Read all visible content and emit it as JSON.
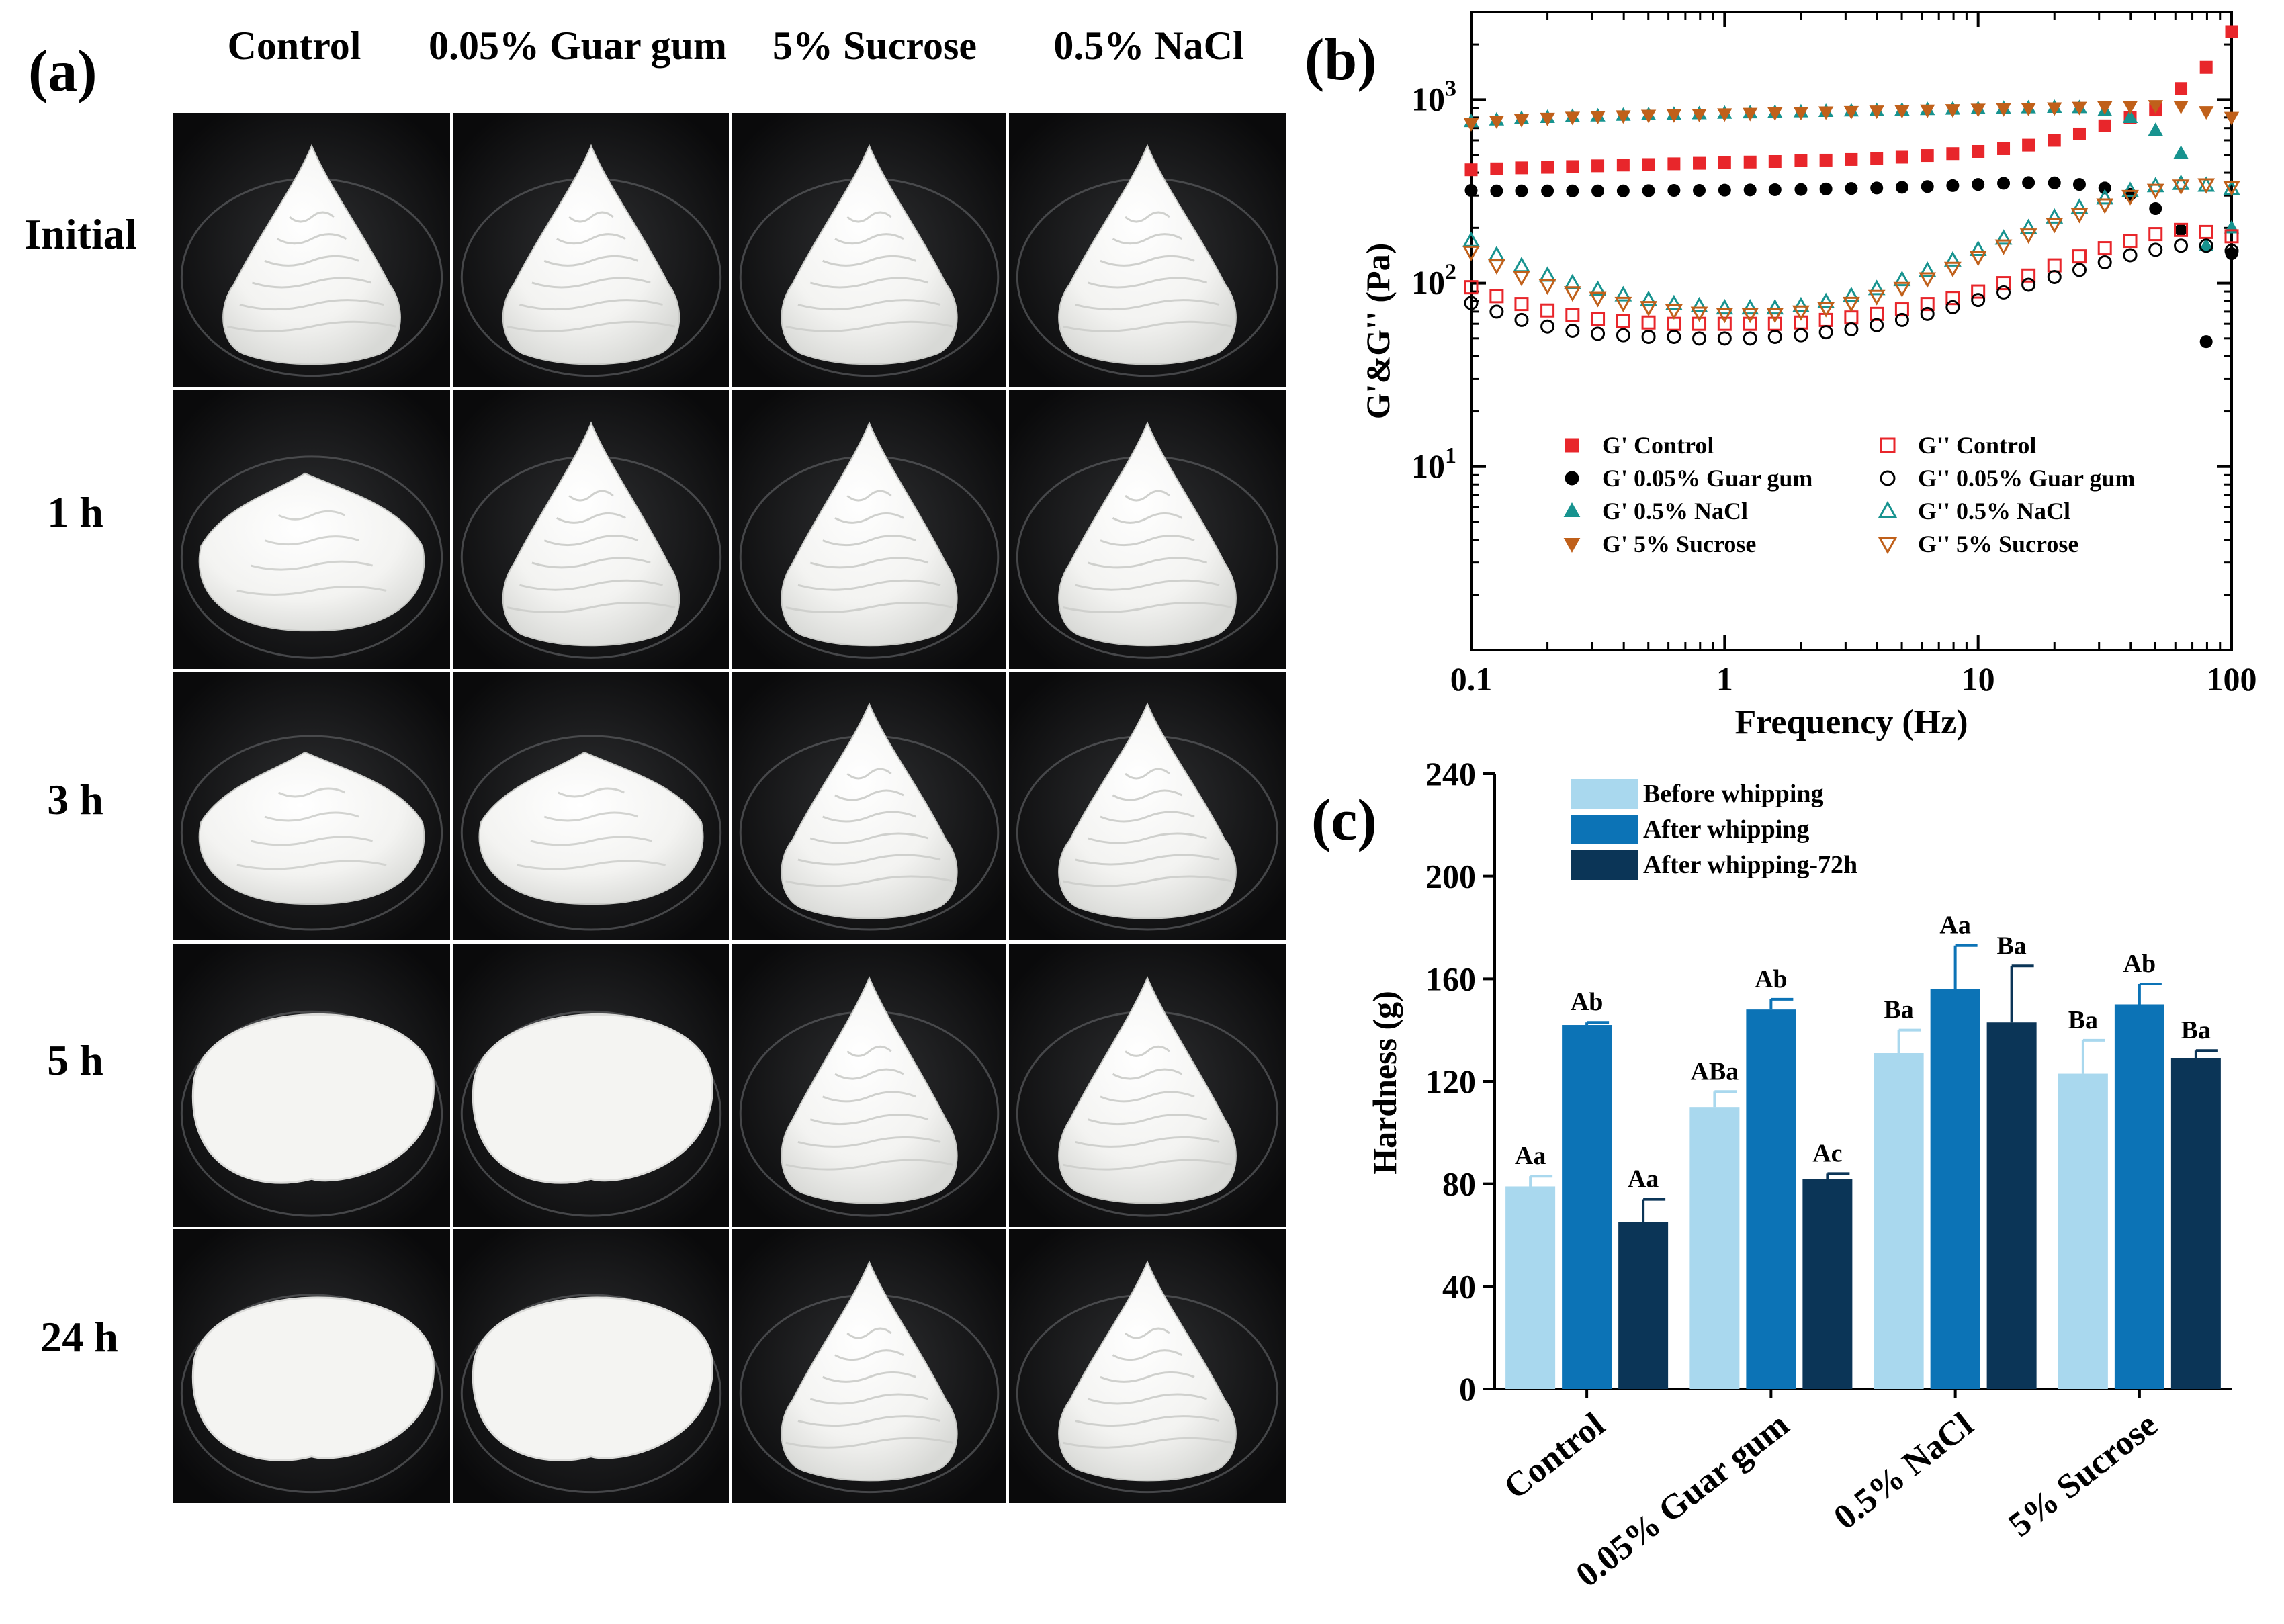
{
  "panel_a": {
    "label": "(a)",
    "columns": [
      "Control",
      "0.05% Guar gum",
      "5% Sucrose",
      "0.5% NaCl"
    ],
    "rows": [
      "Initial",
      "1 h",
      "3 h",
      "5 h",
      "24 h"
    ],
    "states": [
      [
        "peak",
        "peak",
        "peak",
        "peak"
      ],
      [
        "slump",
        "peak",
        "peak",
        "peak"
      ],
      [
        "slump",
        "slump",
        "peak",
        "peak"
      ],
      [
        "puddle",
        "puddle",
        "peak",
        "peak"
      ],
      [
        "puddle",
        "puddle",
        "peak",
        "peak"
      ]
    ]
  },
  "chart_data": [
    {
      "id": "b",
      "panel_label": "(b)",
      "type": "scatter",
      "x_scale": "log",
      "y_scale": "log",
      "xlim": [
        0.1,
        100
      ],
      "ylim": [
        1,
        3000
      ],
      "xlabel": "Frequency (Hz)",
      "ylabel": "G'&G'' (Pa)",
      "x_ticks": [
        {
          "v": 0.1,
          "label": "0.1"
        },
        {
          "v": 1,
          "label": "1"
        },
        {
          "v": 10,
          "label": "10"
        },
        {
          "v": 100,
          "label": "100"
        }
      ],
      "y_ticks": [
        {
          "v": 10,
          "base": "10",
          "exp": "1"
        },
        {
          "v": 100,
          "base": "10",
          "exp": "2"
        },
        {
          "v": 1000,
          "base": "10",
          "exp": "3"
        }
      ],
      "x": [
        0.1,
        0.126,
        0.158,
        0.2,
        0.251,
        0.316,
        0.398,
        0.501,
        0.631,
        0.794,
        1.0,
        1.26,
        1.58,
        2.0,
        2.51,
        3.16,
        3.98,
        5.01,
        6.31,
        7.94,
        10.0,
        12.6,
        15.8,
        20.0,
        25.1,
        31.6,
        39.8,
        50.1,
        63.1,
        79.4,
        100
      ],
      "series": [
        {
          "name": "G' Control",
          "marker": "square",
          "filled": true,
          "color": "#e8262b",
          "values": [
            415,
            420,
            425,
            428,
            432,
            436,
            440,
            443,
            447,
            450,
            453,
            457,
            460,
            464,
            468,
            472,
            478,
            486,
            496,
            508,
            522,
            540,
            565,
            600,
            650,
            720,
            800,
            880,
            1150,
            1500,
            2350
          ]
        },
        {
          "name": "G' 0.05% Guar gum",
          "marker": "circle",
          "filled": true,
          "color": "#000000",
          "values": [
            320,
            318,
            318,
            318,
            318,
            318,
            318,
            319,
            320,
            320,
            321,
            322,
            323,
            324,
            326,
            328,
            330,
            333,
            336,
            340,
            345,
            350,
            353,
            352,
            345,
            330,
            305,
            255,
            195,
            48,
            145
          ]
        },
        {
          "name": "G' 0.5% NaCl",
          "marker": "triangle-up",
          "filled": true,
          "color": "#17938f",
          "values": [
            760,
            775,
            790,
            800,
            810,
            815,
            822,
            828,
            833,
            838,
            843,
            848,
            853,
            858,
            863,
            868,
            873,
            878,
            883,
            888,
            893,
            898,
            903,
            908,
            905,
            870,
            800,
            680,
            510,
            160,
            200
          ]
        },
        {
          "name": "G' 5% Sucrose",
          "marker": "triangle-down",
          "filled": true,
          "color": "#c0601a",
          "values": [
            740,
            765,
            780,
            792,
            802,
            810,
            816,
            822,
            827,
            832,
            837,
            842,
            847,
            852,
            857,
            862,
            867,
            872,
            877,
            882,
            887,
            892,
            897,
            902,
            908,
            914,
            920,
            928,
            920,
            860,
            800
          ]
        },
        {
          "name": "G'' Control",
          "marker": "square",
          "filled": false,
          "color": "#e8262b",
          "values": [
            95,
            85,
            77,
            71,
            67,
            64,
            62,
            61,
            60,
            60,
            60,
            60,
            60,
            61,
            63,
            65,
            68,
            72,
            77,
            83,
            90,
            100,
            110,
            125,
            140,
            155,
            170,
            185,
            195,
            190,
            180
          ]
        },
        {
          "name": "G'' 0.05% Guar gum",
          "marker": "circle",
          "filled": false,
          "color": "#000000",
          "values": [
            78,
            70,
            63,
            58,
            55,
            53,
            52,
            51,
            51,
            50,
            50,
            50,
            51,
            52,
            54,
            56,
            59,
            63,
            68,
            74,
            81,
            89,
            98,
            108,
            118,
            130,
            142,
            152,
            160,
            160,
            150
          ]
        },
        {
          "name": "G'' 0.5% NaCl",
          "marker": "triangle-up",
          "filled": false,
          "color": "#17938f",
          "values": [
            170,
            142,
            124,
            110,
            100,
            92,
            86,
            81,
            77,
            75,
            73,
            73,
            73,
            75,
            79,
            85,
            93,
            104,
            117,
            133,
            152,
            175,
            200,
            228,
            258,
            290,
            318,
            338,
            348,
            340,
            325
          ]
        },
        {
          "name": "G'' 5% Sucrose",
          "marker": "triangle-down",
          "filled": false,
          "color": "#c0601a",
          "values": [
            148,
            125,
            108,
            97,
            89,
            83,
            78,
            74,
            71,
            69,
            68,
            68,
            68,
            70,
            73,
            78,
            85,
            94,
            106,
            121,
            139,
            160,
            184,
            210,
            238,
            268,
            298,
            322,
            340,
            345,
            335
          ]
        }
      ],
      "legend_order": [
        0,
        4,
        1,
        5,
        2,
        6,
        3,
        7
      ],
      "legend_position": "bottom-left, inside plot"
    },
    {
      "id": "c",
      "panel_label": "(c)",
      "type": "bar",
      "categories": [
        "Control",
        "0.05% Guar gum",
        "0.5% NaCl",
        "5% Sucrose"
      ],
      "series": [
        {
          "name": "Before whipping",
          "color": "#a9d8ee",
          "values": [
            79,
            110,
            131,
            123
          ],
          "errors": [
            4,
            6,
            9,
            13
          ],
          "labels": [
            "Aa",
            "ABa",
            "Ba",
            "Ba"
          ]
        },
        {
          "name": "After whipping",
          "color": "#0c73b6",
          "values": [
            142,
            148,
            156,
            150
          ],
          "errors": [
            1,
            4,
            17,
            8
          ],
          "labels": [
            "Ab",
            "Ab",
            "Aa",
            "Ab"
          ]
        },
        {
          "name": "After whipping-72h",
          "color": "#0b3557",
          "values": [
            65,
            82,
            143,
            129
          ],
          "errors": [
            9,
            2,
            22,
            3
          ],
          "labels": [
            "Aa",
            "Ac",
            "Ba",
            "Ba"
          ]
        }
      ],
      "ylabel": "Hardness (g)",
      "xlabel": "",
      "ylim": [
        0,
        240
      ],
      "y_ticks": [
        0,
        40,
        80,
        120,
        160,
        200,
        240
      ],
      "legend_position": "top-left"
    }
  ]
}
